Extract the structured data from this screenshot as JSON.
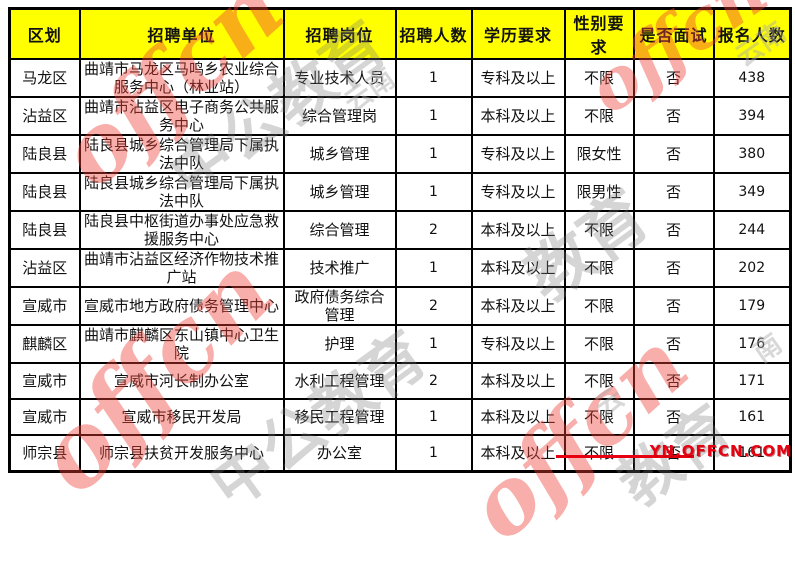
{
  "table": {
    "column_keys": [
      "district",
      "unit",
      "position",
      "headcount",
      "education",
      "gender",
      "interview",
      "applicants"
    ],
    "columns": [
      "区划",
      "招聘单位",
      "招聘岗位",
      "招聘人数",
      "学历要求",
      "性别要求",
      "是否面试",
      "报名人数"
    ],
    "rows": [
      [
        "马龙区",
        "曲靖市马龙区马鸣乡农业综合服务中心（林业站）",
        "专业技术人员",
        "1",
        "专科及以上",
        "不限",
        "否",
        "438"
      ],
      [
        "沾益区",
        "曲靖市沾益区电子商务公共服务中心",
        "综合管理岗",
        "1",
        "本科及以上",
        "不限",
        "否",
        "394"
      ],
      [
        "陆良县",
        "陆良县城乡综合管理局下属执法中队",
        "城乡管理",
        "1",
        "专科及以上",
        "限女性",
        "否",
        "380"
      ],
      [
        "陆良县",
        "陆良县城乡综合管理局下属执法中队",
        "城乡管理",
        "1",
        "专科及以上",
        "限男性",
        "否",
        "349"
      ],
      [
        "陆良县",
        "陆良县中枢街道办事处应急救援服务中心",
        "综合管理",
        "2",
        "本科及以上",
        "不限",
        "否",
        "244"
      ],
      [
        "沾益区",
        "曲靖市沾益区经济作物技术推广站",
        "技术推广",
        "1",
        "本科及以上",
        "不限",
        "否",
        "202"
      ],
      [
        "宣威市",
        "宣威市地方政府债务管理中心",
        "政府债务综合管理",
        "2",
        "本科及以上",
        "不限",
        "否",
        "179"
      ],
      [
        "麒麟区",
        "曲靖市麒麟区东山镇中心卫生院",
        "护理",
        "1",
        "专科及以上",
        "不限",
        "否",
        "176"
      ],
      [
        "宣威市",
        "宣威市河长制办公室",
        "水利工程管理",
        "2",
        "本科及以上",
        "不限",
        "否",
        "171"
      ],
      [
        "宣威市",
        "宣威市移民开发局",
        "移民工程管理",
        "1",
        "本科及以上",
        "不限",
        "否",
        "161"
      ],
      [
        "师宗县",
        "师宗县扶贫开发服务中心",
        "办公室",
        "1",
        "本科及以上",
        "不限",
        "否",
        "161"
      ]
    ]
  },
  "watermarks": {
    "brand": "offcn",
    "brand_cn": "中公教育",
    "brand_cn_short": "教育",
    "region": "云南",
    "region_char1": "云",
    "region_char2": "南",
    "site": "YN.OFFCN.COM"
  },
  "colors": {
    "header_bg": "#ffff00",
    "border": "#000000",
    "watermark_red": "#ef4136",
    "watermark_gray": "#777777",
    "site_red": "#e60012"
  }
}
